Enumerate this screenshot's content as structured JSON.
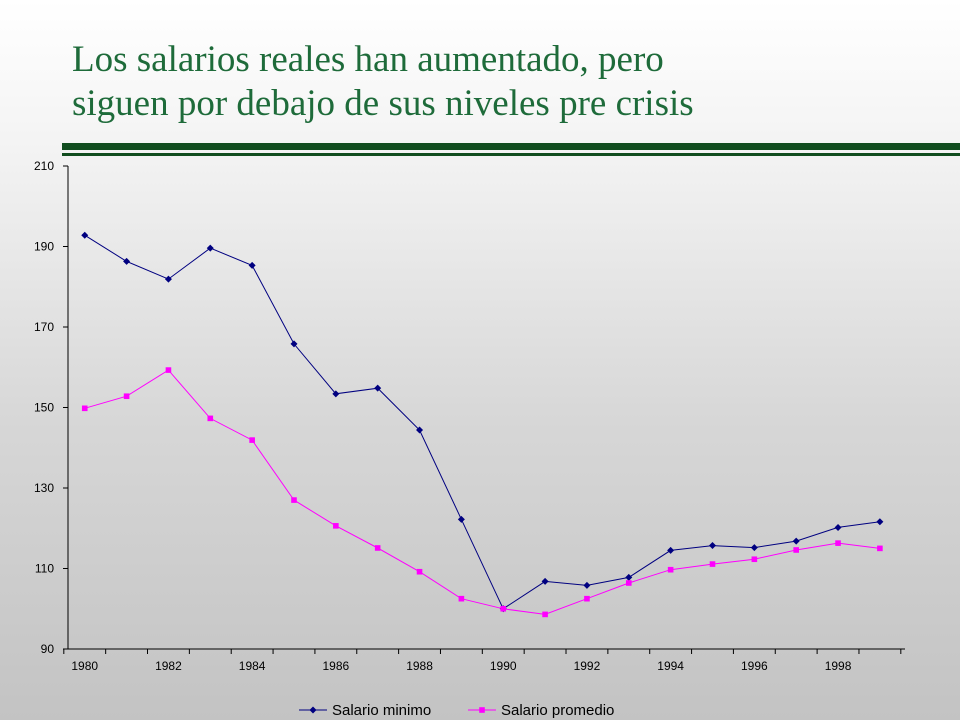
{
  "slide": {
    "title_line1": "Los salarios reales han aumentado, pero",
    "title_line2": "siguen por debajo de sus niveles pre crisis"
  },
  "colors": {
    "title": "#1e6b3a",
    "rule": "#114d1f"
  },
  "chart_data": {
    "type": "line",
    "title": "",
    "xlabel": "",
    "ylabel": "",
    "x": [
      1980,
      1981,
      1982,
      1983,
      1984,
      1985,
      1986,
      1987,
      1988,
      1989,
      1990,
      1991,
      1992,
      1993,
      1994,
      1995,
      1996,
      1997,
      1998,
      1999
    ],
    "xlim": [
      1979.6,
      1999.6
    ],
    "x_tick_labels": [
      "1980",
      "1982",
      "1984",
      "1986",
      "1988",
      "1990",
      "1992",
      "1994",
      "1996",
      "1998"
    ],
    "ylim": [
      90,
      210
    ],
    "y_tick_labels": [
      "90",
      "110",
      "130",
      "150",
      "170",
      "190",
      "210"
    ],
    "grid": false,
    "legend_position": "bottom",
    "series": [
      {
        "name": "Salario minimo",
        "color": "#000080",
        "marker": "diamond",
        "values": [
          192.8,
          186.3,
          181.9,
          189.6,
          185.3,
          165.8,
          153.4,
          154.8,
          144.4,
          122.2,
          100.0,
          106.8,
          105.8,
          107.8,
          114.5,
          115.7,
          115.2,
          116.8,
          120.2,
          121.6
        ]
      },
      {
        "name": "Salario promedio",
        "color": "#ff00ff",
        "marker": "square",
        "values": [
          149.8,
          152.8,
          159.3,
          147.3,
          141.9,
          127.0,
          120.6,
          115.1,
          109.2,
          102.5,
          100.0,
          98.6,
          102.5,
          106.4,
          109.7,
          111.1,
          112.3,
          114.6,
          116.3,
          115.0
        ]
      }
    ]
  }
}
